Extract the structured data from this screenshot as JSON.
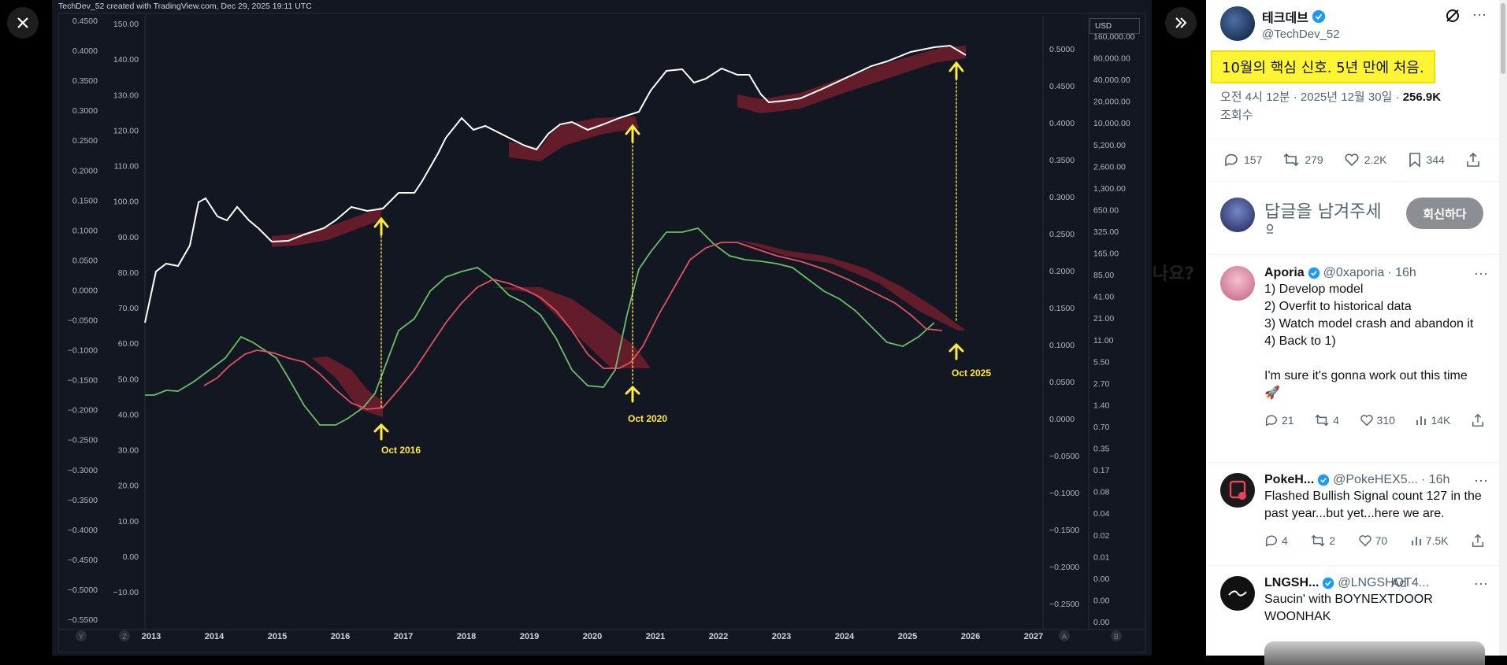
{
  "viewer": {
    "close_label": "✕",
    "expand_label": "»",
    "behind_text": "나요?",
    "chart": {
      "header": "TechDev_52 created with TradingView.com, Dec 29, 2025 19:11 UTC",
      "currency": "USD",
      "left_axis1_ticks": [
        "0.4500",
        "0.4000",
        "0.3500",
        "0.3000",
        "0.2500",
        "0.2000",
        "0.1500",
        "0.1000",
        "0.0500",
        "0.0000",
        "−0.0500",
        "−0.1000",
        "−0.1500",
        "−0.2000",
        "−0.2500",
        "−0.3000",
        "−0.3500",
        "−0.4000",
        "−0.4500",
        "−0.5000",
        "−0.5500"
      ],
      "left_axis2_ticks": [
        "150.00",
        "140.00",
        "130.00",
        "120.00",
        "110.00",
        "100.00",
        "90.00",
        "80.00",
        "70.00",
        "60.00",
        "50.00",
        "40.00",
        "30.00",
        "20.00",
        "10.00",
        "0.00",
        "−10.00"
      ],
      "right_axis1_ticks": [
        "0.5000",
        "0.4500",
        "0.4000",
        "0.3500",
        "0.3000",
        "0.2500",
        "0.2000",
        "0.1500",
        "0.1000",
        "0.0500",
        "0.0000",
        "−0.0500",
        "−0.1000",
        "−0.1500",
        "−0.2000",
        "−0.2500"
      ],
      "right_axis2_ticks": [
        "160,000.00",
        "80,000.00",
        "40,000.00",
        "20,000.00",
        "10,000.00",
        "5,200.00",
        "2,600.00",
        "1,300.00",
        "650.00",
        "325.00",
        "165.00",
        "85.00",
        "41.00",
        "21.00",
        "11.00",
        "5.50",
        "2.70",
        "1.40",
        "0.70",
        "0.35",
        "0.17",
        "0.08",
        "0.04",
        "0.02",
        "0.01",
        "0.00",
        "0.00",
        "0.00"
      ],
      "x_ticks": [
        "2013",
        "2014",
        "2015",
        "2016",
        "2017",
        "2018",
        "2019",
        "2020",
        "2021",
        "2022",
        "2023",
        "2024",
        "2025",
        "2026",
        "2027"
      ],
      "bottom_letters": [
        "Y",
        "Z",
        "A",
        "B"
      ],
      "annotations": [
        "Oct 2016",
        "Oct 2020",
        "Oct 2025"
      ]
    }
  },
  "tweet": {
    "display_name": "테크데브",
    "handle": "@TechDev_52",
    "text": "10월의 핵심 신호. 5년 만에 처음.",
    "time": "오전 4시 12분 · 2025년 12월 30일 · ",
    "views": "256.9K",
    "views_label": "조회수",
    "replies": "157",
    "retweets": "279",
    "likes": "2.2K",
    "bookmarks": "344"
  },
  "compose": {
    "placeholder": "답글을 남겨주세",
    "button": "회신하다"
  },
  "replies": [
    {
      "name": "Aporia",
      "handle": "@0xaporia",
      "time": "· 16h",
      "text": "1) Develop model\n2) Overfit to historical data\n3) Watch model crash and abandon it\n4) Back to 1)\n\nI'm sure it's gonna work out this time 🚀",
      "replies": "21",
      "retweets": "4",
      "likes": "310",
      "views": "14K",
      "avatar_color": "#e8a0b8"
    },
    {
      "name": "PokeH...",
      "handle": "@PokeHEX5...",
      "time": "· 16h",
      "text": "Flashed Bullish Signal count 127 in the past year...but yet...here we are.",
      "replies": "4",
      "retweets": "2",
      "likes": "70",
      "views": "7.5K",
      "avatar_color": "#1a1a1a"
    },
    {
      "name": "LNGSH...",
      "handle": "@LNGSHOT4...",
      "ad_label": "Ad",
      "text": "Saucin' with BOYNEXTDOOR WOONHAK",
      "avatar_color": "#111111"
    }
  ]
}
